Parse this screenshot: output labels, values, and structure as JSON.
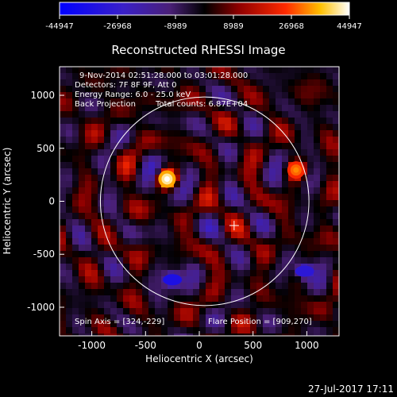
{
  "chart_data": {
    "type": "heatmap",
    "title": "Reconstructed RHESSI Image",
    "xlabel": "Heliocentric X (arcsec)",
    "ylabel": "Heliocentric Y (arcsec)",
    "xlim": [
      -1300,
      1300
    ],
    "ylim": [
      -1270,
      1270
    ],
    "x_ticks": [
      -1000,
      -500,
      0,
      500,
      1000
    ],
    "y_ticks": [
      -1000,
      -500,
      0,
      500,
      1000
    ],
    "colorbar": {
      "min": -44947,
      "max": 44947,
      "ticks": [
        -44947,
        -26968,
        -8989,
        8989,
        26968,
        44947
      ],
      "colormap": "blue-purple-black-red-yellow-white"
    },
    "annotations": [
      "9-Nov-2014 02:51:28.000 to 03:01:28.000",
      "Detectors: 7F 8F 9F, Att 0",
      "Energy Range: 6.0 - 25.0 keV",
      "Back Projection",
      "Total counts: 6.87E+04"
    ],
    "spin_axis_label": "Spin Axis = [324,-229]",
    "flare_position_label": "Flare Position = [909,270]",
    "solar_disk": {
      "center": [
        50,
        0
      ],
      "radius_arcsec": 970
    },
    "crosshair": [
      324,
      -229
    ],
    "sources": [
      {
        "x": -300,
        "y": 210,
        "value": 44947,
        "kind": "peak"
      },
      {
        "x": 900,
        "y": 295,
        "value": 32000,
        "kind": "peak"
      },
      {
        "x": -250,
        "y": -740,
        "value": -35000,
        "kind": "trough"
      },
      {
        "x": 980,
        "y": -660,
        "value": -30000,
        "kind": "trough"
      }
    ]
  },
  "footer": {
    "timestamp": "27-Jul-2017 17:11"
  },
  "colors": {
    "background": "#000000",
    "axes": "#ffffff"
  }
}
